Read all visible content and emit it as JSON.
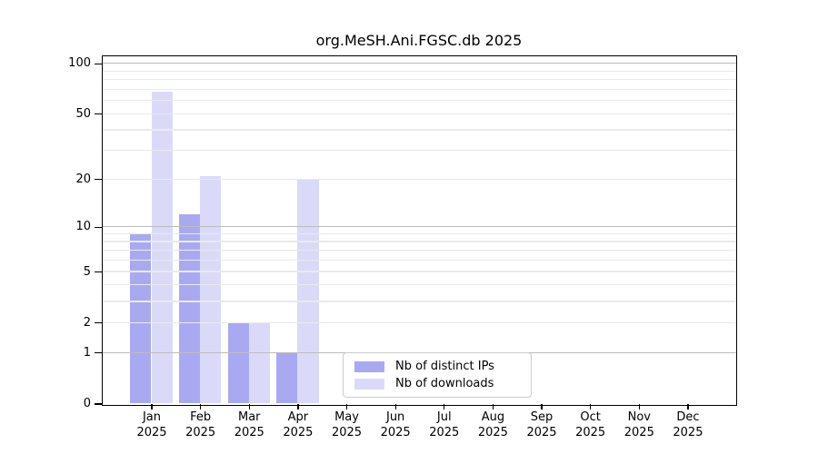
{
  "page": {
    "background": "#ffffff"
  },
  "chart_data": {
    "type": "bar",
    "title": "org.MeSH.Ani.FGSC.db 2025",
    "categories": [
      "Jan",
      "Feb",
      "Mar",
      "Apr",
      "May",
      "Jun",
      "Jul",
      "Aug",
      "Sep",
      "Oct",
      "Nov",
      "Dec"
    ],
    "category_year": "2025",
    "series": [
      {
        "name": "Nb of distinct IPs",
        "color": "#a9a9f2",
        "values": [
          9,
          12,
          2,
          1,
          0,
          0,
          0,
          0,
          0,
          0,
          0,
          0
        ]
      },
      {
        "name": "Nb of downloads",
        "color": "#dadaf8",
        "values": [
          68,
          21,
          2,
          20,
          0,
          0,
          0,
          0,
          0,
          0,
          0,
          0
        ]
      }
    ],
    "xlabel": "",
    "ylabel": "",
    "yscale": "log1p",
    "ylim": [
      0,
      111
    ],
    "y_labeled_ticks": [
      0,
      1,
      2,
      5,
      10,
      20,
      50,
      100
    ],
    "y_major_gridlines": [
      1,
      10,
      100
    ],
    "y_minor_gridlines": [
      2,
      3,
      4,
      5,
      6,
      7,
      8,
      9,
      20,
      30,
      40,
      50,
      60,
      70,
      80,
      90
    ],
    "grid": "horizontal",
    "legend_position": "inside-bottom-center"
  },
  "colors": {
    "grid_major": "#bcbcbc",
    "grid_minor": "#eaeaea",
    "spine": "#000000",
    "legend_border": "#cccccc",
    "text": "#000000"
  }
}
